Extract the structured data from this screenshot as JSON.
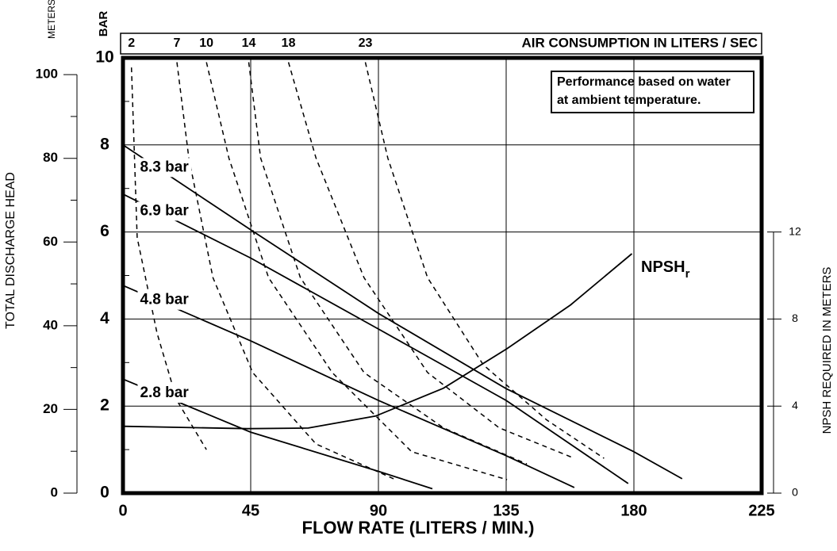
{
  "chart_data": {
    "type": "line",
    "x_label": "FLOW RATE (LITERS / MIN.)",
    "y_label": "TOTAL DISCHARGE HEAD",
    "y_unit_label": "BAR",
    "meters_unit_label": "METERS",
    "y2_label": "NPSH REQUIRED IN METERS",
    "air_label": "AIR CONSUMPTION IN LITERS / SEC",
    "note": [
      "Performance based on water",
      "at ambient temperature."
    ],
    "npsh_label": {
      "main": "NPSH",
      "sub": "r"
    },
    "xlim": [
      0,
      225
    ],
    "xticks": [
      0,
      45,
      90,
      135,
      180,
      225
    ],
    "ylim": [
      0,
      10
    ],
    "yticks": [
      0,
      2,
      4,
      6,
      8,
      10
    ],
    "yminor": [
      1,
      3,
      5,
      7,
      9
    ],
    "meters_lim": [
      0,
      104
    ],
    "meters_ticks": [
      0,
      20,
      40,
      60,
      80,
      100
    ],
    "meters_minor": [
      10,
      30,
      50,
      70,
      90
    ],
    "y2lim": [
      0,
      20
    ],
    "y2ticks": [
      0,
      4,
      8,
      12
    ],
    "grid": true,
    "series": [
      {
        "name": "8.3 bar",
        "color": "#000000",
        "x": [
          0,
          45,
          90,
          135,
          180,
          197
        ],
        "values": [
          8.0,
          6.05,
          4.13,
          2.4,
          0.95,
          0.33
        ]
      },
      {
        "name": "6.9 bar",
        "color": "#000000",
        "x": [
          0,
          45,
          90,
          135,
          178
        ],
        "values": [
          6.87,
          5.4,
          3.77,
          2.13,
          0.22
        ]
      },
      {
        "name": "4.8 bar",
        "color": "#000000",
        "x": [
          0,
          45,
          90,
          135,
          159
        ],
        "values": [
          4.77,
          3.5,
          2.13,
          0.86,
          0.13
        ]
      },
      {
        "name": "2.8 bar",
        "color": "#000000",
        "x": [
          0,
          45,
          90,
          109
        ],
        "values": [
          2.62,
          1.4,
          0.5,
          0.1
        ]
      }
    ],
    "air_series": [
      {
        "name": "2",
        "color": "#000000",
        "x": [
          3,
          5,
          12,
          19,
          29.4
        ],
        "values": [
          9.78,
          5.87,
          3.68,
          2.13,
          1.0
        ]
      },
      {
        "name": "7",
        "color": "#000000",
        "x": [
          19,
          23.2,
          31.7,
          45.7,
          68,
          96
        ],
        "values": [
          9.9,
          7.7,
          4.95,
          2.77,
          1.13,
          0.31
        ]
      },
      {
        "name": "10",
        "color": "#000000",
        "x": [
          29.4,
          37.3,
          51.3,
          73.7,
          101.7,
          135.3
        ],
        "values": [
          9.9,
          7.7,
          4.95,
          2.77,
          0.95,
          0.31
        ]
      },
      {
        "name": "14",
        "color": "#000000",
        "x": [
          44.3,
          48.5,
          62.5,
          84.9,
          112.9,
          142.3
        ],
        "values": [
          9.9,
          7.7,
          4.95,
          2.77,
          1.5,
          0.67
        ]
      },
      {
        "name": "18",
        "color": "#000000",
        "x": [
          58.3,
          68,
          84.9,
          107.3,
          132.5,
          159
        ],
        "values": [
          9.9,
          7.7,
          4.95,
          2.77,
          1.5,
          0.8
        ]
      },
      {
        "name": "23",
        "color": "#000000",
        "x": [
          85.4,
          93.3,
          107.3,
          126.9,
          149.3,
          169.5
        ],
        "values": [
          9.9,
          7.7,
          4.95,
          2.95,
          1.68,
          0.8
        ]
      }
    ],
    "npsh_series": {
      "color": "#000000",
      "axis": "y2",
      "x": [
        0,
        44,
        65.3,
        89,
        112.9,
        135.3,
        157.7,
        179.3
      ],
      "values": [
        3.07,
        2.96,
        2.99,
        3.54,
        4.82,
        6.64,
        8.65,
        11.0
      ]
    }
  }
}
